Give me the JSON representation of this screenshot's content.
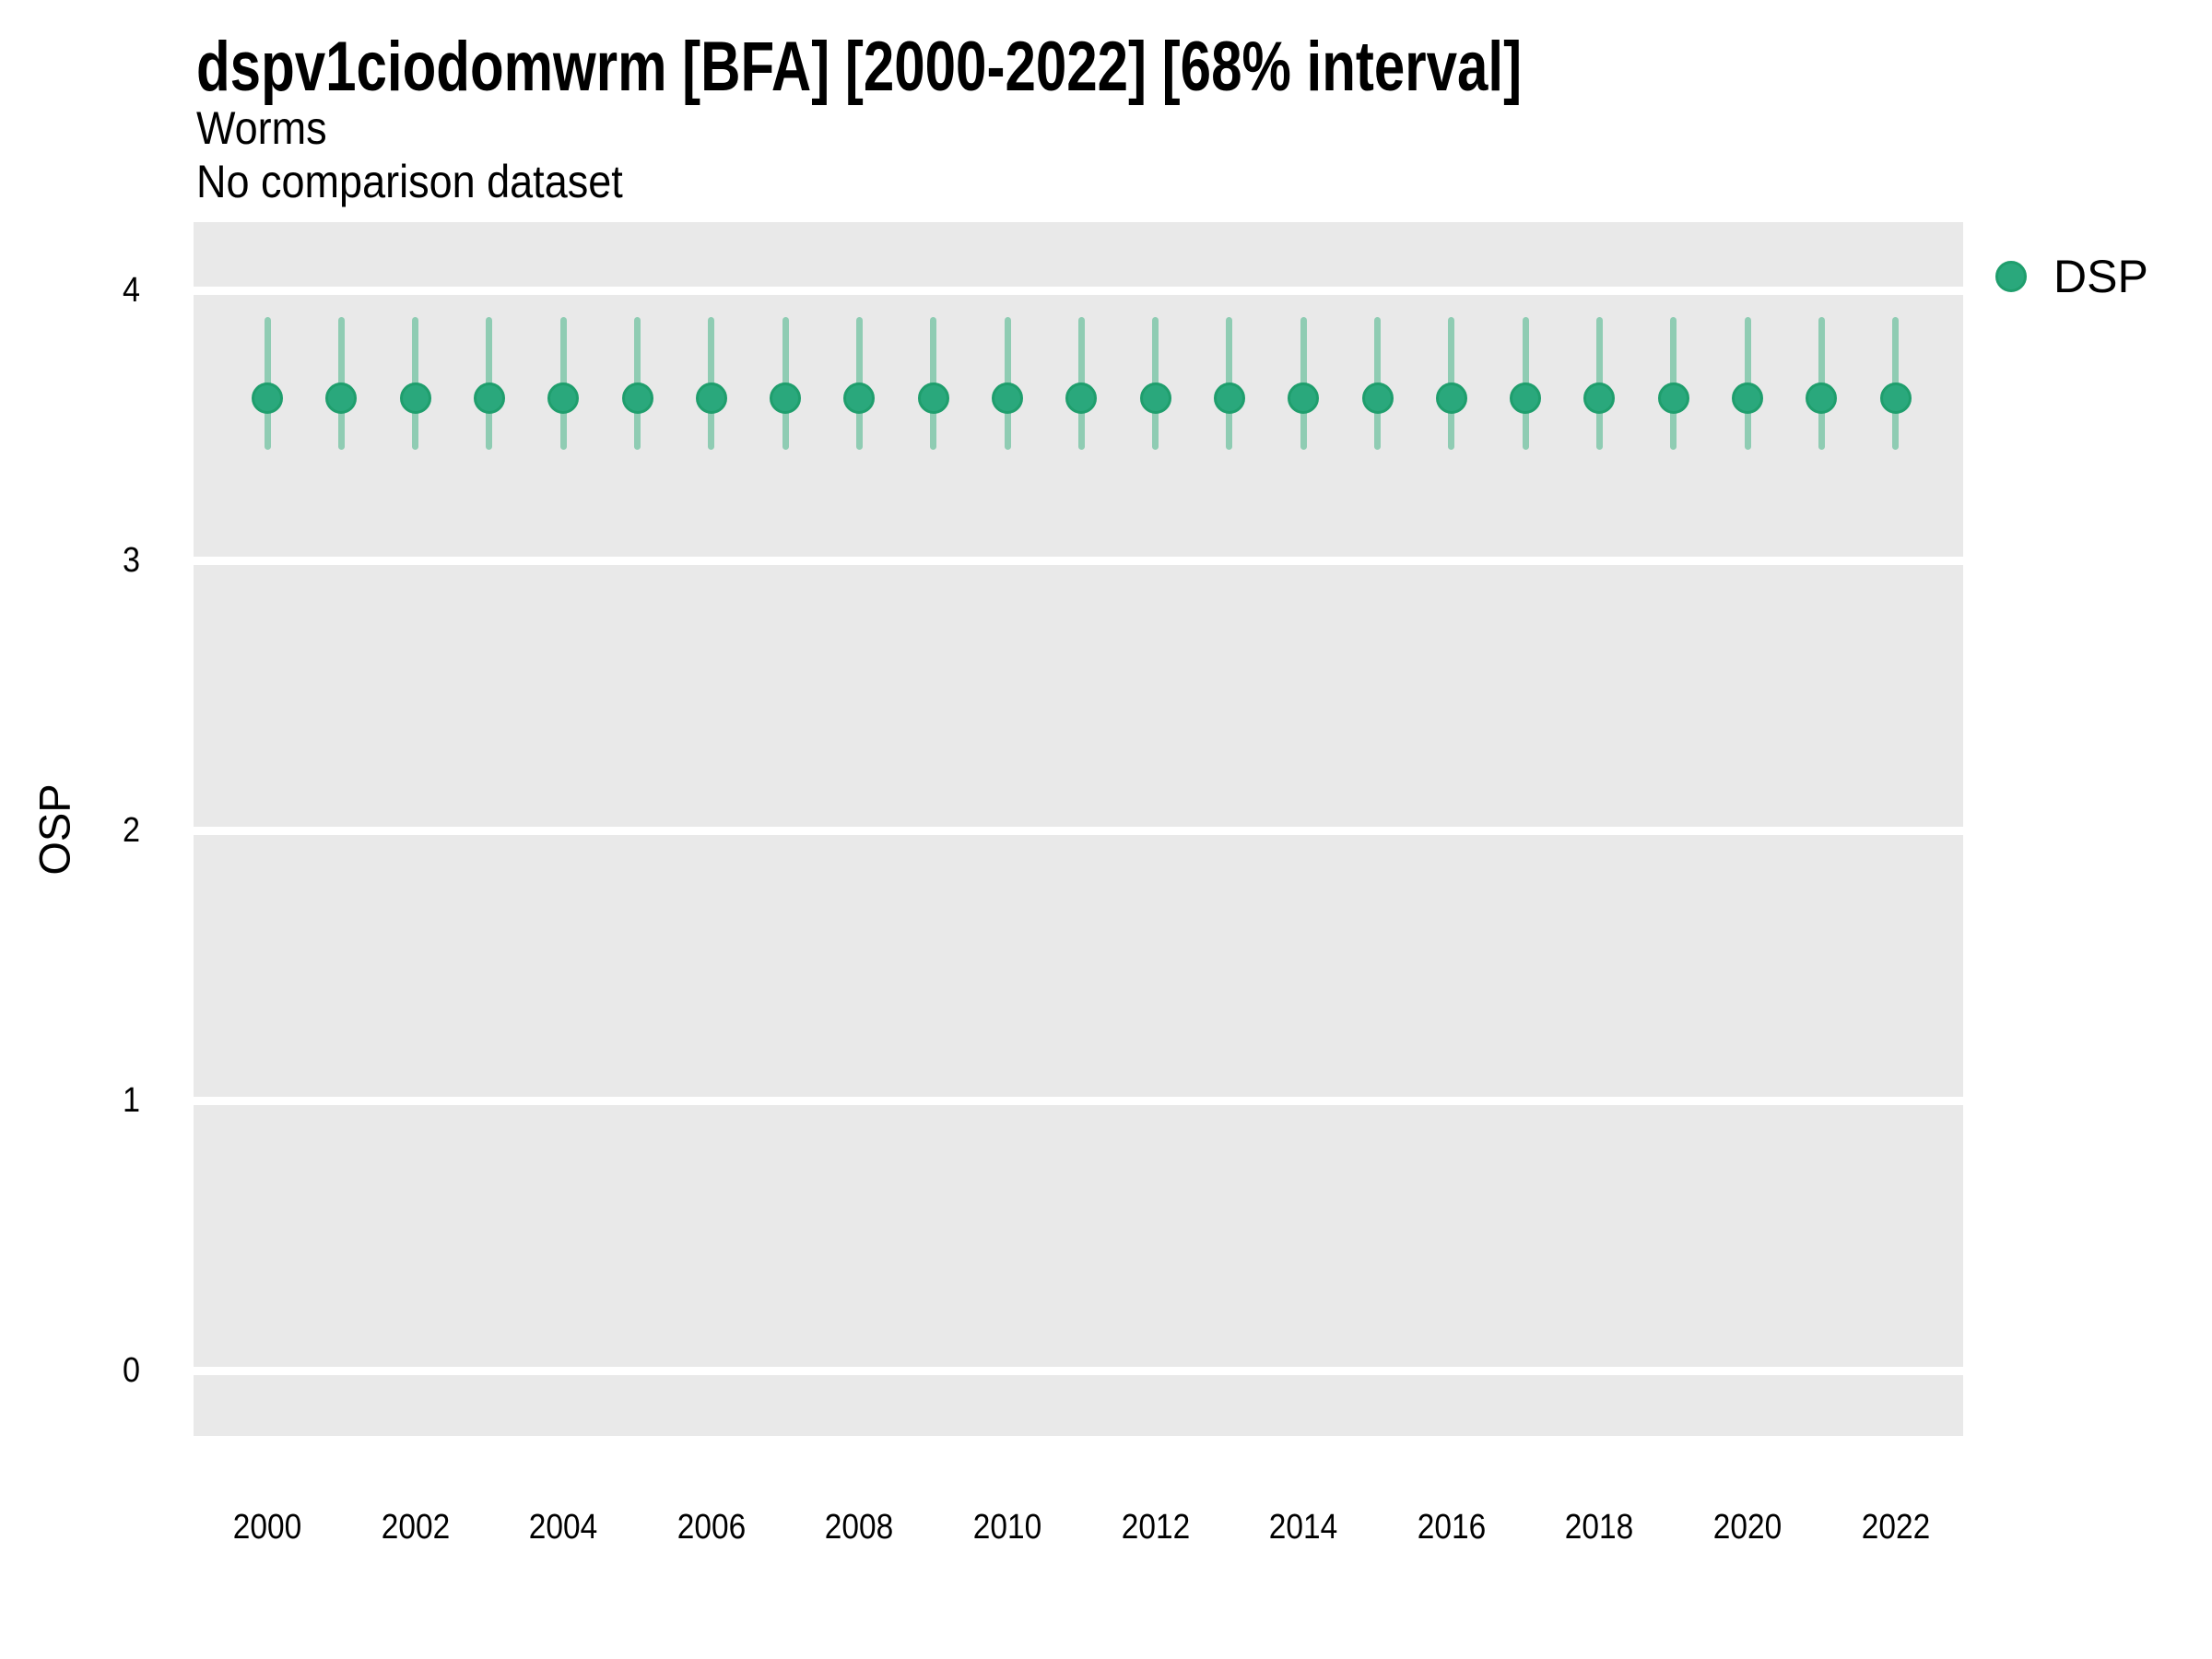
{
  "chart_data": {
    "type": "scatter",
    "title": "dspv1ciodomwrm [BFA] [2000-2022] [68% interval]",
    "subtitle": [
      "Worms",
      "No comparison dataset"
    ],
    "xlabel": "",
    "ylabel": "OSP",
    "interval_level": "68%",
    "x": [
      2000,
      2001,
      2002,
      2003,
      2004,
      2005,
      2006,
      2007,
      2008,
      2009,
      2010,
      2011,
      2012,
      2013,
      2014,
      2015,
      2016,
      2017,
      2018,
      2019,
      2020,
      2021,
      2022
    ],
    "series": [
      {
        "name": "DSP",
        "values": [
          3.6,
          3.6,
          3.6,
          3.6,
          3.6,
          3.6,
          3.6,
          3.6,
          3.6,
          3.6,
          3.6,
          3.6,
          3.6,
          3.6,
          3.6,
          3.6,
          3.6,
          3.6,
          3.6,
          3.6,
          3.6,
          3.6,
          3.6
        ],
        "interval_low": [
          3.41,
          3.41,
          3.41,
          3.41,
          3.41,
          3.41,
          3.41,
          3.41,
          3.41,
          3.41,
          3.41,
          3.41,
          3.41,
          3.41,
          3.41,
          3.41,
          3.41,
          3.41,
          3.41,
          3.41,
          3.41,
          3.41,
          3.41
        ],
        "interval_high": [
          3.9,
          3.9,
          3.9,
          3.9,
          3.9,
          3.9,
          3.9,
          3.9,
          3.9,
          3.9,
          3.9,
          3.9,
          3.9,
          3.9,
          3.9,
          3.9,
          3.9,
          3.9,
          3.9,
          3.9,
          3.9,
          3.9,
          3.9
        ]
      }
    ],
    "ylim": [
      -0.25,
      4.25
    ],
    "yticks": [
      0,
      1,
      2,
      3,
      4
    ],
    "xticks": [
      2000,
      2002,
      2004,
      2006,
      2008,
      2010,
      2012,
      2014,
      2016,
      2018,
      2020,
      2022
    ],
    "legend": {
      "position": "right",
      "entries": [
        {
          "label": "DSP",
          "color": "#2aa87c"
        }
      ]
    },
    "grid": {
      "major": "horizontal",
      "on": true
    },
    "colors": {
      "point_fill": "#2aa87c",
      "point_border": "#1f9e6d",
      "interval_bar": "#8fccb3",
      "panel_background": "#e9e9e9",
      "gridline": "#ffffff",
      "text": "#000000"
    }
  }
}
